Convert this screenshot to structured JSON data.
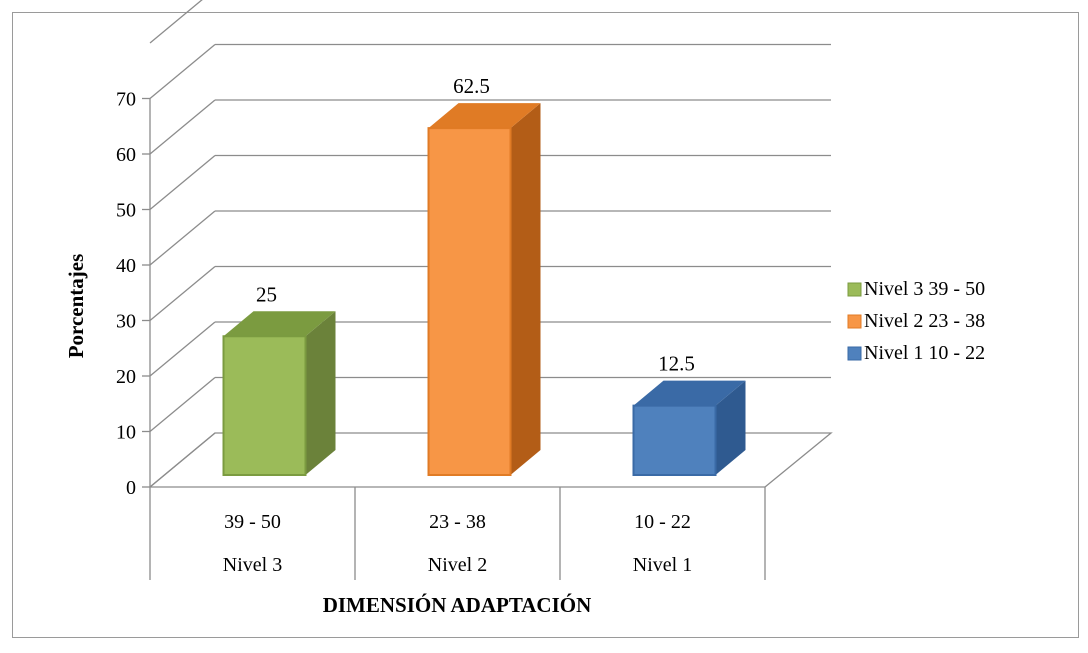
{
  "chart_data": {
    "type": "bar",
    "title": "",
    "xlabel": "DIMENSIÓN ADAPTACIÓN",
    "ylabel": "Porcentajes",
    "ylim": [
      0,
      70
    ],
    "yticks": [
      0,
      10,
      20,
      30,
      40,
      50,
      60,
      70
    ],
    "grid": true,
    "style": "3d-column",
    "legend_position": "right",
    "categories": [
      {
        "range": "39 - 50",
        "level": "Nivel 3"
      },
      {
        "range": "23 - 38",
        "level": "Nivel 2"
      },
      {
        "range": "10 - 22",
        "level": "Nivel 1"
      }
    ],
    "series": [
      {
        "name": "Nivel 3 39 - 50",
        "values": [
          25,
          null,
          null
        ],
        "labels": [
          "25",
          "",
          ""
        ],
        "color": "#9bbb59",
        "side_color": "#6b823a",
        "top_color": "#7b9b40"
      },
      {
        "name": "Nivel 2 23 - 38",
        "values": [
          null,
          62.5,
          null
        ],
        "labels": [
          "",
          "62.5",
          ""
        ],
        "color": "#f79646",
        "side_color": "#b35d17",
        "top_color": "#e07b25"
      },
      {
        "name": "Nivel 1 10 - 22",
        "values": [
          null,
          null,
          12.5
        ],
        "labels": [
          "",
          "",
          "12.5"
        ],
        "color": "#4f81bd",
        "side_color": "#2f5a90",
        "top_color": "#3a6aa6"
      }
    ]
  }
}
